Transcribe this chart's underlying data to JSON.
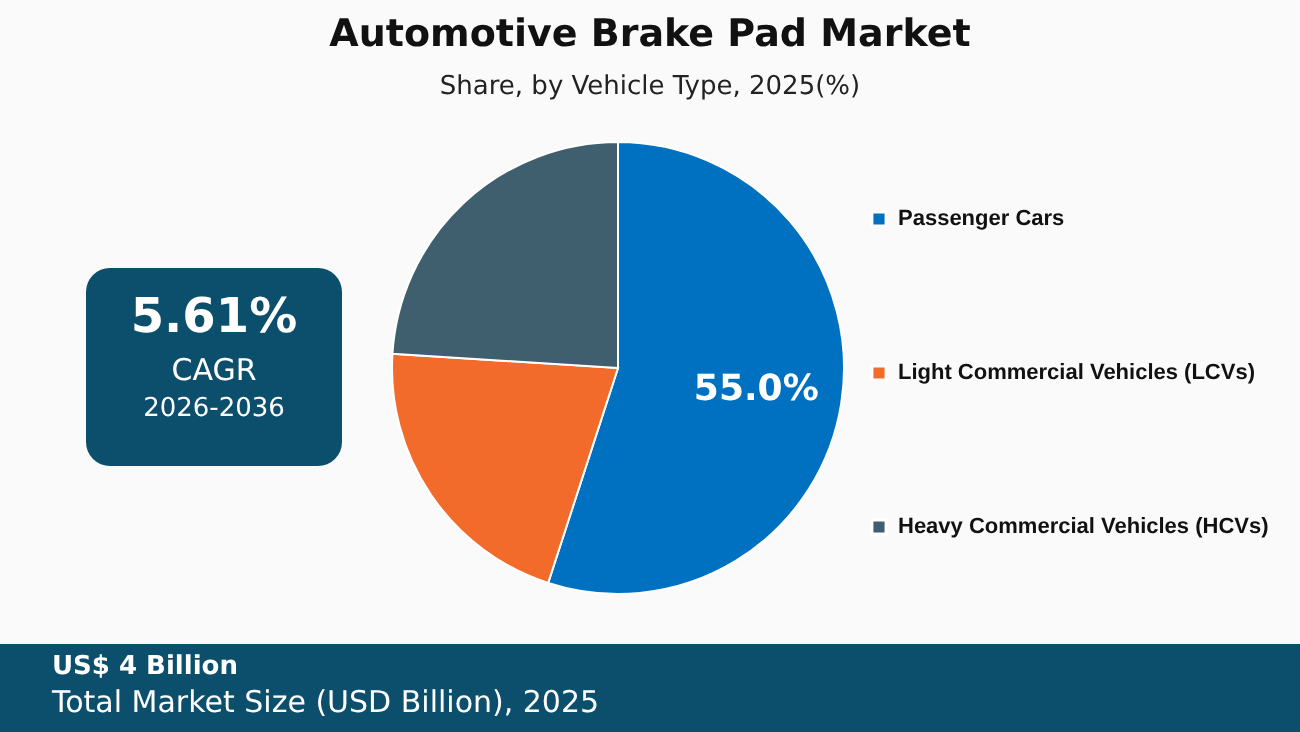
{
  "chart_data": {
    "type": "pie",
    "title": "Automotive Brake Pad Market",
    "subtitle": "Share, by Vehicle Type, 2025(%)",
    "categories": [
      "Passenger Cars",
      "Light Commercial Vehicles (LCVs)",
      "Heavy Commercial Vehicles (HCVs)"
    ],
    "values": [
      55.0,
      21,
      24
    ],
    "colors": [
      "#0070c0",
      "#f26b2a",
      "#3f5f6f"
    ],
    "value_labels": [
      "55.0%",
      null,
      null
    ],
    "legend": "right",
    "annotations": [
      "5.61%",
      "CAGR",
      "2026-2036",
      "US$ 4 Billion",
      "Total Market Size (USD Billion), 2025"
    ]
  }
}
